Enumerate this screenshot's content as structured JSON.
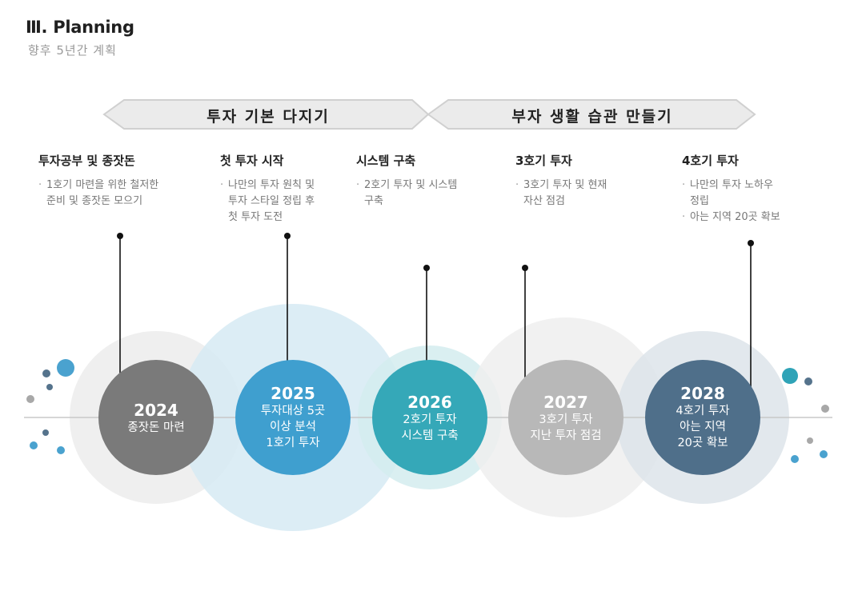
{
  "header": {
    "title": "Ⅲ. Planning",
    "subtitle": "향후 5년간 계획"
  },
  "banners": [
    {
      "label": "투자 기본 다지기"
    },
    {
      "label": "부자 생활 습관 만들기"
    }
  ],
  "milestones": [
    {
      "heading": "투자공부 및 종잣돈",
      "bullets": [
        [
          "1호기 마련을 위한 철저한",
          "준비 및 종잣돈 모으기"
        ]
      ],
      "year": "2024",
      "circle_lines": [
        "종잣돈 마련"
      ],
      "color": "#7a7a7a",
      "halo_color": "#ececec"
    },
    {
      "heading": "첫 투자 시작",
      "bullets": [
        [
          "나만의 투자 원칙 및",
          "투자 스타일 정립 후",
          "첫 투자 도전"
        ]
      ],
      "year": "2025",
      "circle_lines": [
        "투자대상 5곳",
        "이상 분석",
        "1호기 투자"
      ],
      "color": "#3f9fcf",
      "halo_color": "#d6eaf3"
    },
    {
      "heading": "시스템 구축",
      "bullets": [
        [
          "2호기 투자 및 시스템",
          "구축"
        ]
      ],
      "year": "2026",
      "circle_lines": [
        "2호기 투자",
        "시스템 구축"
      ],
      "color": "#35a8b8",
      "halo_color": "#d3ecef"
    },
    {
      "heading": "3호기 투자",
      "bullets": [
        [
          "3호기 투자 및 현재",
          "자산 점검"
        ]
      ],
      "year": "2027",
      "circle_lines": [
        "3호기 투자",
        "지난 투자 점검"
      ],
      "color": "#b8b8b8",
      "halo_color": "#efefef"
    },
    {
      "heading": "4호기 투자",
      "bullets": [
        [
          "나만의 투자 노하우",
          "정립"
        ],
        [
          "아는 지역 20곳 확보"
        ]
      ],
      "year": "2028",
      "circle_lines": [
        "4호기 투자",
        "아는 지역",
        "20곳 확보"
      ],
      "color": "#4f6f8a",
      "halo_color": "#dde4ea"
    }
  ],
  "colors": {
    "banner_fill": "#ebebeb",
    "banner_stroke": "#d0d0d0",
    "axis": "#c8c8c8",
    "connector": "#111111",
    "dot_teal": "#2fa3b7",
    "dot_blue": "#4aa2cf",
    "dot_slate": "#55738c",
    "dot_gray": "#a8a8a8"
  },
  "decorative_dots": [
    {
      "name": "dot-1",
      "color_key": "dot_blue"
    },
    {
      "name": "dot-2",
      "color_key": "dot_slate"
    },
    {
      "name": "dot-3",
      "color_key": "dot_slate"
    },
    {
      "name": "dot-4",
      "color_key": "dot_gray"
    },
    {
      "name": "dot-5",
      "color_key": "dot_blue"
    },
    {
      "name": "dot-6",
      "color_key": "dot_slate"
    },
    {
      "name": "dot-7",
      "color_key": "dot_blue"
    },
    {
      "name": "dot-8",
      "color_key": "dot_teal"
    },
    {
      "name": "dot-9",
      "color_key": "dot_slate"
    },
    {
      "name": "dot-10",
      "color_key": "dot_gray"
    },
    {
      "name": "dot-11",
      "color_key": "dot_gray"
    },
    {
      "name": "dot-12",
      "color_key": "dot_blue"
    },
    {
      "name": "dot-13",
      "color_key": "dot_blue"
    }
  ]
}
